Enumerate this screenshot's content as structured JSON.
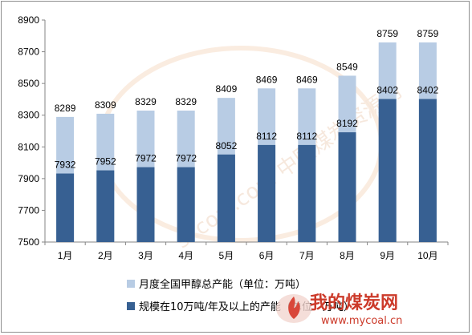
{
  "chart_data": {
    "type": "bar",
    "title": "",
    "xlabel": "",
    "ylabel": "",
    "categories": [
      "1月",
      "2月",
      "3月",
      "4月",
      "5月",
      "6月",
      "7月",
      "8月",
      "9月",
      "10月"
    ],
    "series": [
      {
        "name": "月度全国甲醇总产能（单位：万吨）",
        "color": "#b8cce4",
        "values": [
          8289,
          8309,
          8329,
          8329,
          8409,
          8469,
          8469,
          8549,
          8759,
          8759
        ]
      },
      {
        "name": "规模在10万吨/年及以上的产能（单位：万吨）",
        "color": "#376092",
        "values": [
          7932,
          7952,
          7972,
          7972,
          8052,
          8112,
          8112,
          8192,
          8402,
          8402
        ]
      }
    ],
    "ylim": [
      7500,
      8900
    ],
    "yticks": [
      7500,
      7700,
      7900,
      8100,
      8300,
      8500,
      8700,
      8900
    ],
    "grid": false,
    "legend_position": "bottom-left",
    "bar_mode": "overlap"
  },
  "watermarks": {
    "background_text": "sxcoal.com 中国煤炭资源网",
    "logo_text": "我的煤炭网",
    "logo_url": "www.mycoal.cn"
  }
}
